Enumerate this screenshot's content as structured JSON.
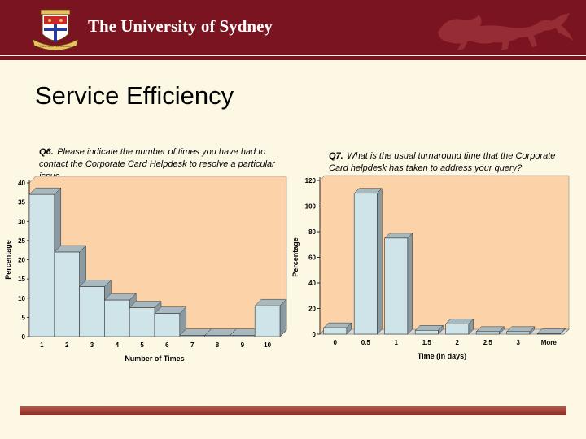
{
  "header": {
    "university_name": "The University of Sydney",
    "crest_motto": "Sidere mens eadem mutato",
    "crest_icon": "university-crest-icon",
    "lion_icon": "heraldic-lion-icon",
    "background_color": "#7a1420"
  },
  "slide": {
    "title": "Service Efficiency"
  },
  "chart_data": [
    {
      "type": "bar",
      "question_number": "Q6.",
      "title": "Please indicate the number of times you have had to contact the Corporate Card Helpdesk to resolve a particular issue",
      "xlabel": "Number of Times",
      "ylabel": "Percentage",
      "categories": [
        "1",
        "2",
        "3",
        "4",
        "5",
        "6",
        "7",
        "8",
        "9",
        "10"
      ],
      "values": [
        37,
        22,
        13,
        9.5,
        7.5,
        6,
        0.3,
        0.3,
        0.3,
        8
      ],
      "ylim": [
        0,
        40
      ],
      "yticks": [
        0,
        5,
        10,
        15,
        20,
        25,
        30,
        35,
        40
      ],
      "plot_background": "#fcd2a8",
      "bar_color": "#cfe4e8",
      "legend": "none"
    },
    {
      "type": "bar",
      "question_number": "Q7.",
      "title": "What is the usual turnaround time that the Corporate Card helpdesk has taken to address your query?",
      "xlabel": "Time (in days)",
      "ylabel": "Percentage",
      "categories": [
        "0",
        "0.5",
        "1",
        "1.5",
        "2",
        "2.5",
        "3",
        "More"
      ],
      "values": [
        5,
        110,
        75,
        3,
        8,
        2,
        2,
        0.5
      ],
      "ylim": [
        0,
        120
      ],
      "yticks": [
        0,
        20,
        40,
        60,
        80,
        100,
        120
      ],
      "plot_background": "#fcd2a8",
      "bar_color": "#cfe4e8",
      "legend": "none"
    }
  ],
  "footer": {
    "bar_color": "#8a2a22"
  }
}
